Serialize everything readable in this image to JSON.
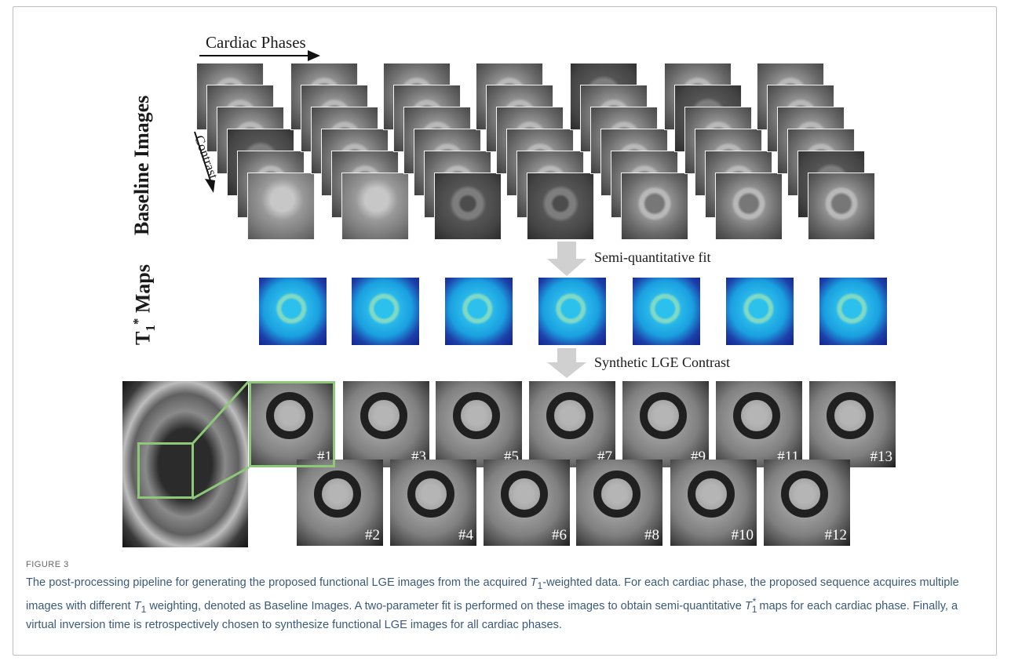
{
  "figure": {
    "labels": {
      "cardiac_phases": "Cardiac Phases",
      "contrast": "Contrast",
      "baseline_images": "Baseline Images",
      "t1_maps_main": "T",
      "t1_maps_sub": "1",
      "t1_maps_sup": "*",
      "t1_maps_rest": " Maps",
      "semi_fit": "Semi-quantitative fit",
      "synthetic": "Synthetic LGE Contrast"
    },
    "top_row_phases": [
      "#1",
      "#3",
      "#5",
      "#7",
      "#9",
      "#11",
      "#13"
    ],
    "bottom_row_phases": [
      "#2",
      "#4",
      "#6",
      "#8",
      "#10",
      "#12"
    ],
    "accent_colors": {
      "highlight": "#8cc878",
      "arrow": "#d0d0d0"
    }
  },
  "caption": {
    "label": "FIGURE 3",
    "text_parts": [
      "The post-processing pipeline for generating the proposed functional LGE images from the acquired ",
      "-weighted data. For each cardiac phase, the proposed sequence acquires multiple images with different ",
      " weighting, denoted as Baseline Images. A two-parameter fit is performed on these images to obtain semi-quantitative ",
      " maps for each cardiac phase. Finally, a virtual inversion time is retrospectively chosen to synthesize functional LGE images for all cardiac phases."
    ],
    "t_symbol": "T",
    "sub_1": "1",
    "sup_star": "*"
  }
}
